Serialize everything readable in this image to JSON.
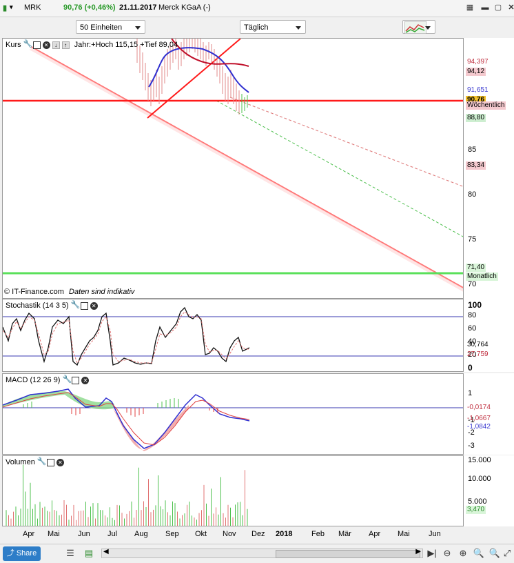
{
  "header": {
    "symbol": "MRK",
    "price_change": "90,76 (+0,46%)",
    "date": "21.11.2017",
    "name": "Merck KGaA (-)"
  },
  "controls": {
    "units": "50 Einheiten",
    "interval": "Täglich"
  },
  "price_panel": {
    "label": "Kurs",
    "info": "Jahr:+Hoch 115,15 +Tief 89,04",
    "copyright": "© IT-Finance.com",
    "disclaimer": "Daten sind indikativ",
    "yticks": [
      "85",
      "80",
      "75",
      "70"
    ],
    "tags": [
      {
        "text": "94,397",
        "color": "#c03040",
        "bg": "#ffffff"
      },
      {
        "text": "94,12",
        "color": "#000000",
        "bg": "#f4c9ce"
      },
      {
        "text": "91,651",
        "color": "#3a3ad0",
        "bg": "#ffffff"
      },
      {
        "text": "90,76",
        "color": "#000000",
        "bg": "#f3c12b"
      },
      {
        "text": "Wöchentlich",
        "color": "#000000",
        "bg": "#f4c9ce"
      },
      {
        "text": "88,80",
        "color": "#000000",
        "bg": "#cdeed0"
      },
      {
        "text": "83,34",
        "color": "#000000",
        "bg": "#f4c9ce"
      },
      {
        "text": "71,40",
        "color": "#000000",
        "bg": "#d9f5d9"
      },
      {
        "text": "Monatlich",
        "color": "#000000",
        "bg": "#d9f5d9"
      }
    ]
  },
  "stoch_panel": {
    "label": "Stochastik (14 3 5)",
    "yticks": [
      "100",
      "80",
      "60",
      "40",
      "20",
      "0"
    ],
    "tags": [
      "30,764",
      "27,759"
    ]
  },
  "macd_panel": {
    "label": "MACD (12 26 9)",
    "yticks": [
      "1",
      "-1",
      "-2",
      "-3"
    ],
    "tags": [
      "-0,0174",
      "-1,0667",
      "-1,0842"
    ]
  },
  "volume_panel": {
    "label": "Volumen",
    "yticks": [
      "15.000",
      "10.000",
      "5.000"
    ],
    "tags": [
      "3,470"
    ]
  },
  "months": [
    "Apr",
    "Mai",
    "Jun",
    "Jul",
    "Aug",
    "Sep",
    "Okt",
    "Nov",
    "Dez",
    "2018",
    "Feb",
    "Mär",
    "Apr",
    "Mai",
    "Jun"
  ],
  "footer": {
    "share": "Share"
  },
  "chart_data": {
    "type": "line",
    "title": "Merck KGaA (-)",
    "x": [
      "Apr",
      "Mai",
      "Jun",
      "Jul",
      "Aug",
      "Sep",
      "Okt",
      "Nov"
    ],
    "series": [],
    "ylim": [
      69,
      98
    ],
    "levels": [
      90.76,
      88.8,
      83.34,
      71.4
    ]
  },
  "colors": {
    "red": "#ff2020",
    "green": "#49e049",
    "blue": "#3030d0",
    "macd_red": "#e8a0a0"
  }
}
